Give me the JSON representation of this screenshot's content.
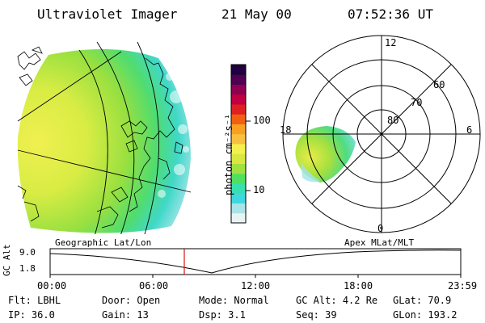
{
  "header": {
    "instrument": "Ultraviolet Imager",
    "date": "21 May 00",
    "time": "07:52:36 UT"
  },
  "colorbar": {
    "unit_label": "photon cm⁻²s⁻¹",
    "ticks": [
      "100",
      "10"
    ],
    "colors": [
      "#e8f4f4",
      "#a8e4e8",
      "#40d8e0",
      "#38e0b0",
      "#50e060",
      "#a0e040",
      "#d8e840",
      "#f4f050",
      "#f8c040",
      "#f8a020",
      "#f06010",
      "#e02020",
      "#c00040",
      "#900050",
      "#500050",
      "#200040"
    ]
  },
  "polar_plot": {
    "ring_labels": [
      "80",
      "70",
      "60"
    ],
    "mlt_labels": [
      "12",
      "18",
      "6",
      "0"
    ]
  },
  "panel_titles": {
    "left": "Geographic Lat/Lon",
    "right": "Apex MLat/MLT"
  },
  "altitude_plot": {
    "ylabel": "GC Alt",
    "y_ticks": [
      "9.0",
      "1.8"
    ],
    "x_ticks": [
      "00:00",
      "06:00",
      "12:00",
      "18:00",
      "23:59"
    ],
    "marker_time": "07:52"
  },
  "status": {
    "row1": [
      {
        "label": "Flt:",
        "value": "LBHL"
      },
      {
        "label": "Door:",
        "value": "Open"
      },
      {
        "label": "Mode:",
        "value": "Normal"
      },
      {
        "label": "GC Alt:",
        "value": "4.2 Re"
      },
      {
        "label": "GLat:",
        "value": "70.9"
      }
    ],
    "row2": [
      {
        "label": "IP:",
        "value": "36.0"
      },
      {
        "label": "Gain:",
        "value": "13"
      },
      {
        "label": "Dsp:",
        "value": "3.1"
      },
      {
        "label": "Seq:",
        "value": "39"
      },
      {
        "label": "GLon:",
        "value": "193.2"
      }
    ]
  }
}
